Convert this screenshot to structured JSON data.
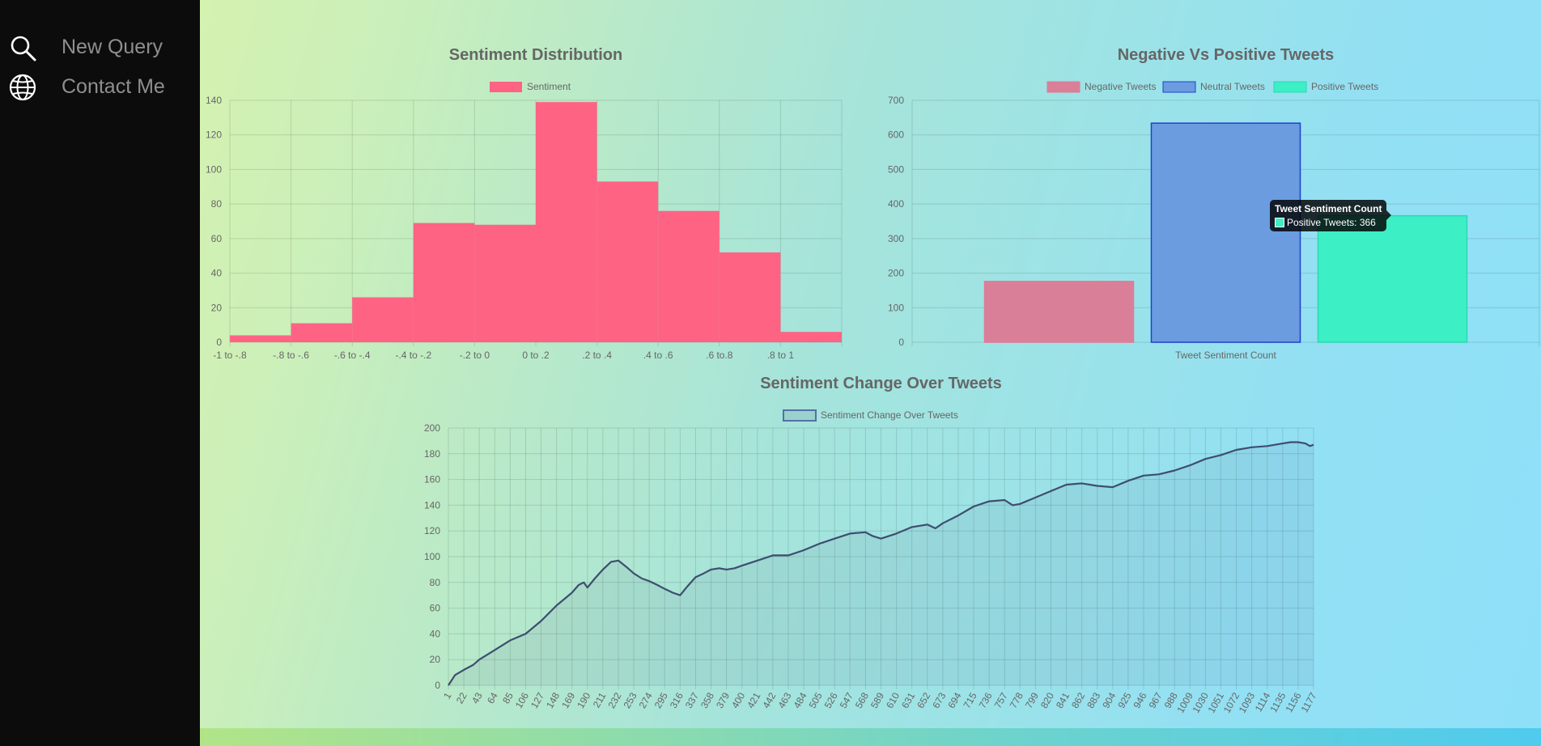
{
  "sidebar": {
    "items": [
      {
        "label": "New Query",
        "icon": "search-icon"
      },
      {
        "label": "Contact Me",
        "icon": "globe-icon"
      }
    ]
  },
  "colors": {
    "sentiment_bar": "#ff6384",
    "negative": "#d98098",
    "neutral": "#6b9ce0",
    "neutral_border": "#1f3fd0",
    "positive": "#3cefc4",
    "line": "#3e4e6e"
  },
  "tooltip": {
    "title": "Tweet Sentiment Count",
    "text": "Positive Tweets: 366"
  },
  "chart_data": [
    {
      "type": "bar",
      "title": "Sentiment Distribution",
      "legend": [
        "Sentiment"
      ],
      "categories": [
        "-1 to -.8",
        "-.8 to -.6",
        "-.6 to -.4",
        "-.4 to -.2",
        "-.2 to 0",
        "0 to .2",
        ".2 to .4",
        ".4 to .6",
        ".6 to.8",
        ".8 to 1"
      ],
      "values": [
        4,
        11,
        26,
        69,
        68,
        139,
        93,
        76,
        52,
        6
      ],
      "ylim": [
        0,
        140
      ],
      "yticks": [
        0,
        20,
        40,
        60,
        80,
        100,
        120,
        140
      ],
      "grid": true
    },
    {
      "type": "bar",
      "title": "Negative Vs Positive Tweets",
      "legend": [
        "Negative Tweets",
        "Neutral Tweets",
        "Positive Tweets"
      ],
      "categories": [
        "Tweet Sentiment Count"
      ],
      "series": [
        {
          "name": "Negative Tweets",
          "values": [
            176
          ]
        },
        {
          "name": "Neutral Tweets",
          "values": [
            634
          ]
        },
        {
          "name": "Positive Tweets",
          "values": [
            366
          ]
        }
      ],
      "ylim": [
        0,
        700
      ],
      "yticks": [
        0,
        100,
        200,
        300,
        400,
        500,
        600,
        700
      ],
      "grid": true
    },
    {
      "type": "line",
      "title": "Sentiment Change Over Tweets",
      "legend": [
        "Sentiment Change Over Tweets"
      ],
      "xlim": [
        1,
        1177
      ],
      "xticks": [
        1,
        22,
        43,
        64,
        85,
        106,
        127,
        148,
        169,
        190,
        211,
        232,
        253,
        274,
        295,
        316,
        337,
        358,
        379,
        400,
        421,
        442,
        463,
        484,
        505,
        526,
        547,
        568,
        589,
        610,
        631,
        652,
        673,
        694,
        715,
        736,
        757,
        778,
        799,
        820,
        841,
        862,
        883,
        904,
        925,
        946,
        967,
        988,
        1009,
        1030,
        1051,
        1072,
        1093,
        1114,
        1135,
        1156,
        1177
      ],
      "ylim": [
        0,
        200
      ],
      "yticks": [
        0,
        20,
        40,
        60,
        80,
        100,
        120,
        140,
        160,
        180,
        200
      ],
      "grid": true,
      "x": [
        1,
        10,
        22,
        35,
        43,
        60,
        85,
        106,
        127,
        148,
        169,
        178,
        185,
        190,
        200,
        211,
        222,
        232,
        243,
        253,
        264,
        274,
        285,
        295,
        306,
        316,
        326,
        337,
        348,
        358,
        369,
        379,
        390,
        400,
        421,
        442,
        463,
        484,
        505,
        526,
        547,
        568,
        578,
        589,
        610,
        631,
        652,
        663,
        673,
        694,
        715,
        736,
        757,
        768,
        778,
        799,
        820,
        841,
        862,
        883,
        904,
        925,
        946,
        967,
        988,
        1009,
        1030,
        1051,
        1072,
        1093,
        1114,
        1135,
        1146,
        1156,
        1166,
        1172,
        1177
      ],
      "y": [
        0,
        8,
        12,
        16,
        20,
        26,
        35,
        40,
        50,
        62,
        72,
        78,
        80,
        76,
        83,
        90,
        96,
        97,
        92,
        87,
        83,
        81,
        78,
        75,
        72,
        70,
        77,
        84,
        87,
        90,
        91,
        90,
        91,
        93,
        97,
        101,
        101,
        105,
        110,
        114,
        118,
        119,
        116,
        114,
        118,
        123,
        125,
        122,
        126,
        132,
        139,
        143,
        144,
        140,
        141,
        146,
        151,
        156,
        157,
        155,
        154,
        159,
        163,
        164,
        167,
        171,
        176,
        179,
        183,
        185,
        186,
        188,
        189,
        189,
        188,
        186,
        187
      ]
    }
  ]
}
